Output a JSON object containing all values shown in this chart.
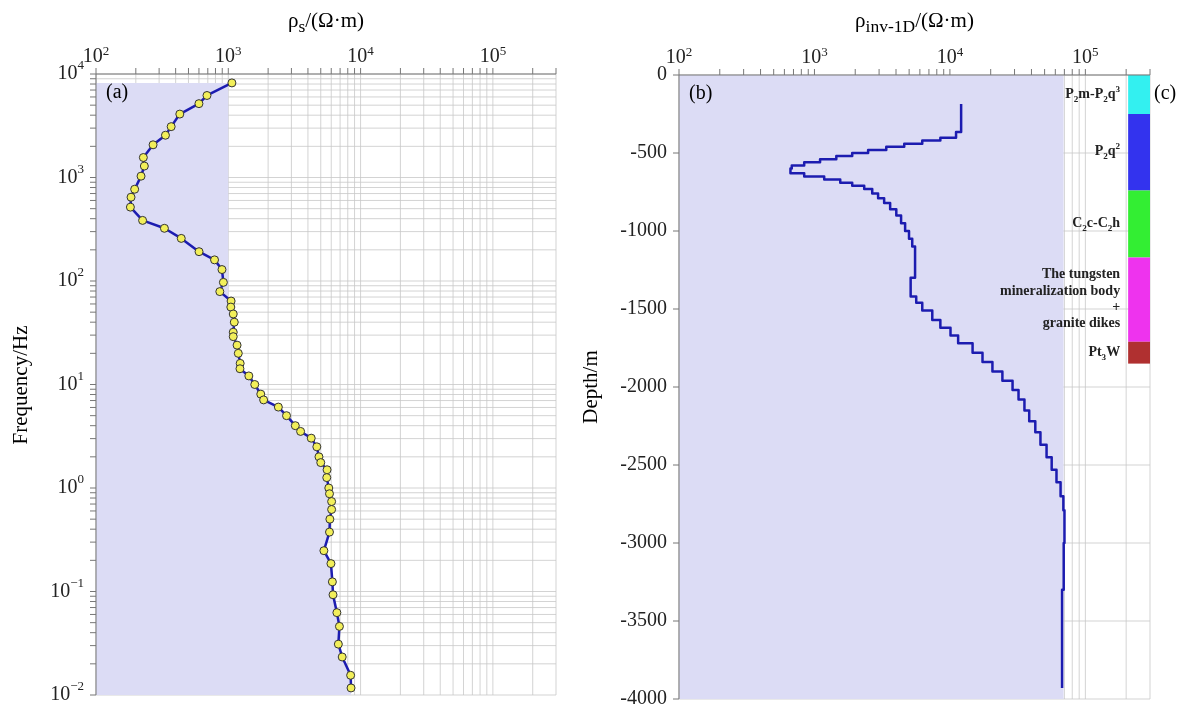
{
  "chart_data": [
    {
      "type": "line",
      "xlabel": "ρ$_{s}$/(Ω·m)",
      "ylabel": "Frequency/Hz",
      "annotations": [
        "(a)"
      ],
      "log": "xy",
      "grid": true,
      "xlim": [
        100,
        300000
      ],
      "ylim": [
        0.01,
        10000
      ],
      "xticks": [
        {
          "value": 100,
          "label": "10$^{2}$"
        },
        {
          "value": 200,
          "label": null
        },
        {
          "value": 300,
          "label": null
        },
        {
          "value": 400,
          "label": null
        },
        {
          "value": 500,
          "label": null
        },
        {
          "value": 600,
          "label": null
        },
        {
          "value": 700,
          "label": null
        },
        {
          "value": 800,
          "label": null
        },
        {
          "value": 900,
          "label": null
        },
        {
          "value": 1000,
          "label": "10$^{3}$"
        },
        {
          "value": 2000,
          "label": null
        },
        {
          "value": 3000,
          "label": null
        },
        {
          "value": 4000,
          "label": null
        },
        {
          "value": 5000,
          "label": null
        },
        {
          "value": 6000,
          "label": null
        },
        {
          "value": 7000,
          "label": null
        },
        {
          "value": 8000,
          "label": null
        },
        {
          "value": 9000,
          "label": null
        },
        {
          "value": 10000,
          "label": "10$^{4}$"
        },
        {
          "value": 20000,
          "label": null
        },
        {
          "value": 30000,
          "label": null
        },
        {
          "value": 40000,
          "label": null
        },
        {
          "value": 50000,
          "label": null
        },
        {
          "value": 60000,
          "label": null
        },
        {
          "value": 70000,
          "label": null
        },
        {
          "value": 80000,
          "label": null
        },
        {
          "value": 90000,
          "label": null
        },
        {
          "value": 100000,
          "label": "10$^{5}$"
        },
        {
          "value": 200000,
          "label": null
        },
        {
          "value": 300000,
          "label": null
        }
      ],
      "yticks": [
        {
          "value": 0.01,
          "label": "10$^{−2}$"
        },
        {
          "value": 0.02,
          "label": null
        },
        {
          "value": 0.03,
          "label": null
        },
        {
          "value": 0.04,
          "label": null
        },
        {
          "value": 0.05,
          "label": null
        },
        {
          "value": 0.06,
          "label": null
        },
        {
          "value": 0.07,
          "label": null
        },
        {
          "value": 0.08,
          "label": null
        },
        {
          "value": 0.09,
          "label": null
        },
        {
          "value": 0.1,
          "label": "10$^{−1}$"
        },
        {
          "value": 0.2,
          "label": null
        },
        {
          "value": 0.3,
          "label": null
        },
        {
          "value": 0.4,
          "label": null
        },
        {
          "value": 0.5,
          "label": null
        },
        {
          "value": 0.6,
          "label": null
        },
        {
          "value": 0.7,
          "label": null
        },
        {
          "value": 0.8,
          "label": null
        },
        {
          "value": 0.9,
          "label": null
        },
        {
          "value": 1,
          "label": "10$^{0}$"
        },
        {
          "value": 2,
          "label": null
        },
        {
          "value": 3,
          "label": null
        },
        {
          "value": 4,
          "label": null
        },
        {
          "value": 5,
          "label": null
        },
        {
          "value": 6,
          "label": null
        },
        {
          "value": 7,
          "label": null
        },
        {
          "value": 8,
          "label": null
        },
        {
          "value": 9,
          "label": null
        },
        {
          "value": 10,
          "label": "10$^{1}$"
        },
        {
          "value": 20,
          "label": null
        },
        {
          "value": 30,
          "label": null
        },
        {
          "value": 40,
          "label": null
        },
        {
          "value": 50,
          "label": null
        },
        {
          "value": 60,
          "label": null
        },
        {
          "value": 70,
          "label": null
        },
        {
          "value": 80,
          "label": null
        },
        {
          "value": 90,
          "label": null
        },
        {
          "value": 100,
          "label": "10$^{2}$"
        },
        {
          "value": 200,
          "label": null
        },
        {
          "value": 300,
          "label": null
        },
        {
          "value": 400,
          "label": null
        },
        {
          "value": 500,
          "label": null
        },
        {
          "value": 600,
          "label": null
        },
        {
          "value": 700,
          "label": null
        },
        {
          "value": 800,
          "label": null
        },
        {
          "value": 900,
          "label": null
        },
        {
          "value": 1000,
          "label": "10$^{3}$"
        },
        {
          "value": 2000,
          "label": null
        },
        {
          "value": 3000,
          "label": null
        },
        {
          "value": 4000,
          "label": null
        },
        {
          "value": 5000,
          "label": null
        },
        {
          "value": 6000,
          "label": null
        },
        {
          "value": 7000,
          "label": null
        },
        {
          "value": 8000,
          "label": null
        },
        {
          "value": 9000,
          "label": null
        },
        {
          "value": 10000,
          "label": "10$^{4}$"
        }
      ],
      "series": [
        {
          "color": "#1c1cb0",
          "marker": "circle",
          "x": [
            1065,
            690,
            600,
            430,
            370,
            335,
            270,
            228,
            232,
            219,
            196,
            184,
            182,
            225,
            329,
            441,
            601,
            787,
            896,
            918,
            863,
            1050,
            1045,
            1090,
            1110,
            1090,
            1090,
            1165,
            1190,
            1230,
            1225,
            1430,
            1585,
            1760,
            1850,
            2390,
            2755,
            3210,
            3520,
            4235,
            4670,
            4845,
            5000,
            5580,
            5550,
            5750,
            5820,
            6040,
            6040,
            5860,
            5820,
            5280,
            5970,
            6120,
            6190,
            6620,
            6920,
            6790,
            7260,
            8410,
            8470
          ],
          "values": [
            8200,
            6200,
            5170,
            4100,
            3100,
            2560,
            2070,
            1560,
            1290,
            1030,
            770,
            645,
            517,
            385,
            323,
            258,
            192,
            160,
            129,
            97,
            79,
            64,
            56,
            48,
            40,
            32,
            29,
            24,
            20,
            16,
            14.2,
            12.1,
            10,
            8.07,
            7.1,
            6.05,
            5,
            4,
            3.52,
            3.03,
            2.5,
            2,
            1.76,
            1.5,
            1.26,
            1,
            0.88,
            0.74,
            0.62,
            0.5,
            0.375,
            0.248,
            0.186,
            0.124,
            0.093,
            0.0625,
            0.046,
            0.031,
            0.0233,
            0.0155,
            0.0117
          ]
        },
        {
          "type": "area",
          "color": "#dcdcf5",
          "x": [
            100,
            1000,
            1000,
            1050,
            1045,
            1090,
            1110,
            1090,
            1090,
            1165,
            1190,
            1230,
            1225,
            1430,
            1585,
            1760,
            1850,
            2390,
            2755,
            3210,
            3520,
            4235,
            4670,
            4845,
            5000,
            5580,
            5550,
            5750,
            5820,
            6040,
            6040,
            5860,
            5820,
            5280,
            5970,
            6120,
            6190,
            6620,
            6920,
            6790,
            7260,
            8410,
            8470
          ],
          "values": [
            8200,
            8200,
            70,
            64,
            56,
            48,
            40,
            32,
            29,
            24,
            20,
            16,
            14.2,
            12.1,
            10,
            8.07,
            7.1,
            6.05,
            5,
            4,
            3.52,
            3.03,
            2.5,
            2,
            1.76,
            1.5,
            1.26,
            1,
            0.88,
            0.74,
            0.62,
            0.5,
            0.375,
            0.248,
            0.186,
            0.124,
            0.093,
            0.0625,
            0.046,
            0.031,
            0.0233,
            0.0155,
            0.0117
          ]
        }
      ]
    },
    {
      "type": "step",
      "xlabel": "ρ$_{inv-1D}$/(Ω·m)",
      "ylabel": "Depth/m",
      "annotations": [
        "(b)",
        "(c)"
      ],
      "log": "x",
      "grid": true,
      "xlim": [
        100,
        300000
      ],
      "ylim": [
        -4000,
        0
      ],
      "xticks": [
        {
          "value": 100,
          "label": "10$^{2}$"
        },
        {
          "value": 200,
          "label": null
        },
        {
          "value": 300,
          "label": null
        },
        {
          "value": 400,
          "label": null
        },
        {
          "value": 500,
          "label": null
        },
        {
          "value": 600,
          "label": null
        },
        {
          "value": 700,
          "label": null
        },
        {
          "value": 800,
          "label": null
        },
        {
          "value": 900,
          "label": null
        },
        {
          "value": 1000,
          "label": "10$^{3}$"
        },
        {
          "value": 2000,
          "label": null
        },
        {
          "value": 3000,
          "label": null
        },
        {
          "value": 4000,
          "label": null
        },
        {
          "value": 5000,
          "label": null
        },
        {
          "value": 6000,
          "label": null
        },
        {
          "value": 7000,
          "label": null
        },
        {
          "value": 8000,
          "label": null
        },
        {
          "value": 9000,
          "label": null
        },
        {
          "value": 10000,
          "label": "10$^{4}$"
        },
        {
          "value": 20000,
          "label": null
        },
        {
          "value": 30000,
          "label": null
        },
        {
          "value": 40000,
          "label": null
        },
        {
          "value": 50000,
          "label": null
        },
        {
          "value": 60000,
          "label": null
        },
        {
          "value": 70000,
          "label": null
        },
        {
          "value": 80000,
          "label": null
        },
        {
          "value": 90000,
          "label": null
        },
        {
          "value": 100000,
          "label": "10$^{5}$"
        },
        {
          "value": 200000,
          "label": null
        },
        {
          "value": 300000,
          "label": null
        }
      ],
      "yticks": [
        -4000,
        -3500,
        -3000,
        -2500,
        -2000,
        -1500,
        -1000,
        -500,
        0
      ],
      "bands": [
        {
          "axis": "x",
          "from": 100,
          "to": 69000,
          "color": "#dcdcf5"
        },
        {
          "axis": "y",
          "from": 0,
          "to": -250,
          "label": "P$_{2}$m-P$_{2}$q$^{3}$",
          "color": "#33f0f0"
        },
        {
          "axis": "y",
          "from": -250,
          "to": -740,
          "label": "P$_{2}$q$^{2}$",
          "color": "#3333ee"
        },
        {
          "axis": "y",
          "from": -740,
          "to": -1170,
          "label": "C$_{2}$c-C$_{2}$h",
          "color": "#33ee33"
        },
        {
          "axis": "y",
          "from": -1170,
          "to": -1710,
          "label": "The tungsten\nmineralization body\n+\ngranite dikes",
          "color": "#ee33ee"
        },
        {
          "axis": "y",
          "from": -1710,
          "to": -1850,
          "label": "Pt$_{3}$W",
          "color": "#b03030"
        }
      ],
      "series": [
        {
          "color": "#1c1cb0",
          "x": [
            12100,
            11100,
            8500,
            6250,
            4600,
            3390,
            2490,
            1900,
            1450,
            1100,
            840,
            680,
            665,
            840,
            1180,
            1550,
            1900,
            2330,
            2670,
            2950,
            3270,
            3620,
            4020,
            4360,
            4670,
            4990,
            5270,
            5530,
            5130,
            5640,
            6250,
            7410,
            8500,
            10100,
            11500,
            14700,
            17400,
            20600,
            24400,
            29000,
            32100,
            35500,
            38500,
            42700,
            46600,
            51700,
            56400,
            61200,
            65600,
            68800,
            70100,
            69200,
            67300,
            67300
          ],
          "values": [
            -186,
            -365,
            -403,
            -420,
            -440,
            -460,
            -480,
            -500,
            -520,
            -540,
            -560,
            -580,
            -600,
            -630,
            -650,
            -670,
            -690,
            -710,
            -730,
            -760,
            -790,
            -820,
            -860,
            -900,
            -950,
            -1000,
            -1050,
            -1100,
            -1300,
            -1420,
            -1460,
            -1510,
            -1570,
            -1620,
            -1670,
            -1720,
            -1780,
            -1840,
            -1900,
            -1960,
            -2020,
            -2080,
            -2150,
            -2220,
            -2290,
            -2370,
            -2450,
            -2530,
            -2610,
            -2700,
            -2790,
            -3000,
            -3300,
            -3930
          ]
        }
      ]
    }
  ]
}
